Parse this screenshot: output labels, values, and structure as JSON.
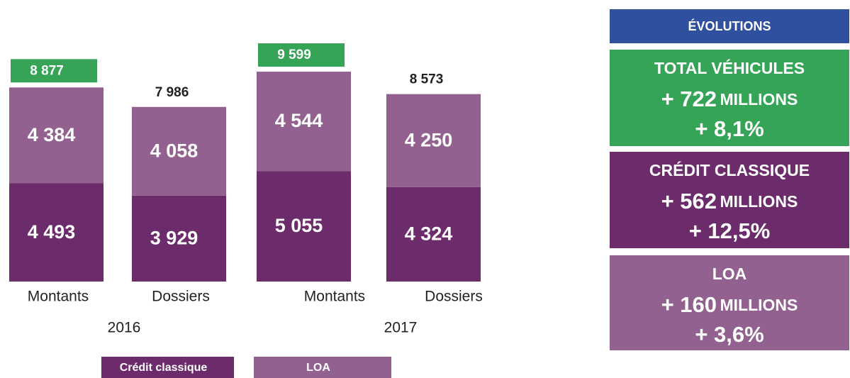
{
  "chart_data": {
    "type": "stacked_bar",
    "groups": [
      "2016",
      "2017"
    ],
    "categories": [
      "Montants",
      "Dossiers",
      "Montants",
      "Dossiers"
    ],
    "series": [
      {
        "name": "Crédit classique",
        "color": "#6c2b6b",
        "values": [
          4493,
          3929,
          5055,
          4324
        ],
        "value_labels": [
          "4 493",
          "3 929",
          "5 055",
          "4 324"
        ]
      },
      {
        "name": "LOA",
        "color": "#93618f",
        "values": [
          4384,
          4058,
          4544,
          4250
        ],
        "value_labels": [
          "4 384",
          "4 058",
          "4 544",
          "4 250"
        ]
      }
    ],
    "totals": [
      8877,
      7986,
      9599,
      8573
    ],
    "total_labels": [
      "8 877",
      "7 986",
      "9 599",
      "8 573"
    ],
    "total_box_color": "#36a457"
  },
  "panels": {
    "title": "ÉVOLUTIONS",
    "title_color": "#2f4f9f",
    "items": [
      {
        "title": "TOTAL VÉHICULES",
        "amount": "+ 722",
        "unit": "MILLIONS",
        "pct": "+ 8,1%",
        "color": "#36a457"
      },
      {
        "title": "CRÉDIT CLASSIQUE",
        "amount": "+ 562",
        "unit": "MILLIONS",
        "pct": "+ 12,5%",
        "color": "#6c2b6b"
      },
      {
        "title": "LOA",
        "amount": "+ 160",
        "unit": "MILLIONS",
        "pct": "+ 3,6%",
        "color": "#93618f"
      }
    ]
  }
}
